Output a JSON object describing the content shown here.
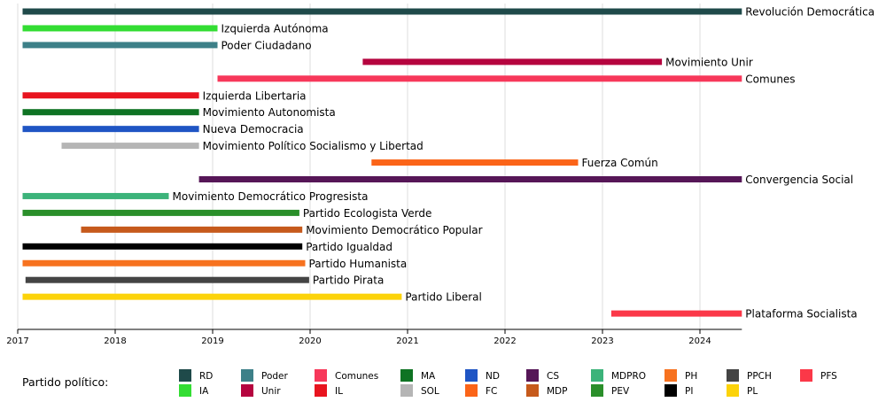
{
  "chart_data": {
    "type": "timeline",
    "xlim": [
      2017,
      2024.43
    ],
    "x_ticks": [
      "2017",
      "2018",
      "2019",
      "2020",
      "2021",
      "2022",
      "2023",
      "2024"
    ],
    "grid": true,
    "legend_title": "Partido político:",
    "legend_placement": "bottom",
    "series": [
      {
        "abbr": "RD",
        "name": "Revolución Democrática",
        "start": 2017.05,
        "end": 2024.43,
        "color": "#1f4a4a"
      },
      {
        "abbr": "IA",
        "name": "Izquierda Autónoma",
        "start": 2017.05,
        "end": 2019.05,
        "color": "#33dd33"
      },
      {
        "abbr": "Poder",
        "name": "Poder Ciudadano",
        "start": 2017.05,
        "end": 2019.05,
        "color": "#3d8088"
      },
      {
        "abbr": "Unir",
        "name": "Movimiento Unir",
        "start": 2020.54,
        "end": 2023.61,
        "color": "#b5043f"
      },
      {
        "abbr": "Comunes",
        "name": "Comunes",
        "start": 2019.05,
        "end": 2024.43,
        "color": "#f7385a"
      },
      {
        "abbr": "IL",
        "name": "Izquierda Libertaria",
        "start": 2017.05,
        "end": 2018.86,
        "color": "#e8141f"
      },
      {
        "abbr": "MA",
        "name": "Movimiento Autonomista",
        "start": 2017.05,
        "end": 2018.86,
        "color": "#0e7323"
      },
      {
        "abbr": "ND",
        "name": "Nueva Democracia",
        "start": 2017.05,
        "end": 2018.86,
        "color": "#1f55c4"
      },
      {
        "abbr": "SOL",
        "name": "Movimiento Político Socialismo y Libertad",
        "start": 2017.45,
        "end": 2018.86,
        "color": "#b5b5b5"
      },
      {
        "abbr": "FC",
        "name": "Fuerza Común",
        "start": 2020.63,
        "end": 2022.75,
        "color": "#fb6418"
      },
      {
        "abbr": "CS",
        "name": "Convergencia Social",
        "start": 2018.86,
        "end": 2024.43,
        "color": "#561657"
      },
      {
        "abbr": "MDPRO",
        "name": "Movimiento Democrático Progresista",
        "start": 2017.05,
        "end": 2018.55,
        "color": "#3cb37a"
      },
      {
        "abbr": "PEV",
        "name": "Partido Ecologista Verde",
        "start": 2017.05,
        "end": 2019.89,
        "color": "#2a8f2a"
      },
      {
        "abbr": "MDP",
        "name": "Movimiento Democrático Popular",
        "start": 2017.65,
        "end": 2019.92,
        "color": "#c65a1c"
      },
      {
        "abbr": "PI",
        "name": "Partido Igualdad",
        "start": 2017.05,
        "end": 2019.92,
        "color": "#000000"
      },
      {
        "abbr": "PH",
        "name": "Partido Humanista",
        "start": 2017.05,
        "end": 2019.95,
        "color": "#f7721f"
      },
      {
        "abbr": "PPCH",
        "name": "Partido Pirata",
        "start": 2017.08,
        "end": 2019.99,
        "color": "#444444"
      },
      {
        "abbr": "PL",
        "name": "Partido Liberal",
        "start": 2017.05,
        "end": 2020.94,
        "color": "#fcd30a"
      },
      {
        "abbr": "PFS",
        "name": "Plataforma Socialista",
        "start": 2023.09,
        "end": 2024.43,
        "color": "#fb3848"
      }
    ],
    "legend_order": [
      "RD",
      "IA",
      "Poder",
      "Unir",
      "Comunes",
      "IL",
      "MA",
      "SOL",
      "ND",
      "FC",
      "CS",
      "MDP",
      "MDPRO",
      "PEV",
      "PH",
      "PI",
      "PPCH",
      "PL",
      "PFS"
    ]
  }
}
